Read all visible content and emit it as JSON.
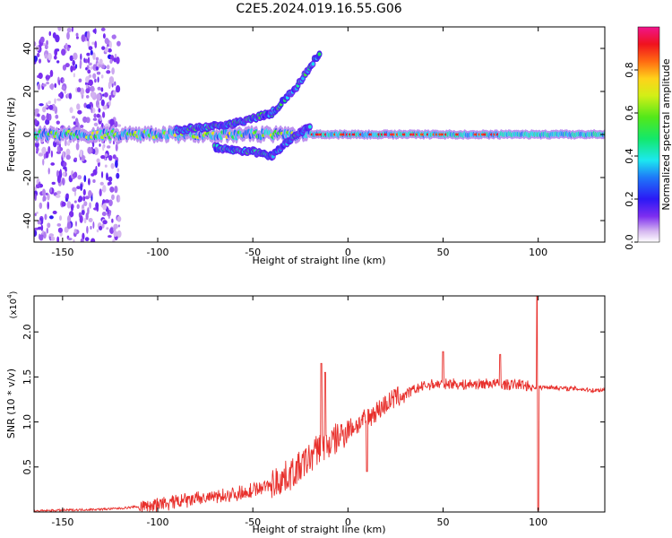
{
  "figure": {
    "title": "C2E5.2024.019.16.55.G06"
  },
  "chart_data": [
    {
      "type": "heatmap",
      "xlabel": "Height of straight line (km)",
      "ylabel": "Frequency (Hz)",
      "xlim": [
        -165,
        135
      ],
      "ylim": [
        -50,
        50
      ],
      "xticks": [
        -150,
        -100,
        -50,
        0,
        50,
        100
      ],
      "yticks": [
        -40,
        -20,
        0,
        20,
        40
      ],
      "colorbar": {
        "label": "Normalized spectral amplitude",
        "range": [
          0,
          1
        ],
        "ticks": [
          0.0,
          0.2,
          0.4,
          0.6,
          0.8
        ],
        "colormap": "rainbow (white, purple, blue, cyan, green, yellow, orange, red, magenta)"
      },
      "features": [
        {
          "name": "main carrier line",
          "x_range": [
            -165,
            135
          ],
          "frequency_hz": 0
        },
        {
          "name": "scattered noise band",
          "x_range": [
            -165,
            -120
          ],
          "frequency_hz_range": [
            -50,
            50
          ]
        },
        {
          "name": "upper branch",
          "points": [
            [
              -90,
              2
            ],
            [
              -60,
              5
            ],
            [
              -40,
              10
            ],
            [
              -27,
              22
            ],
            [
              -15,
              38
            ]
          ]
        },
        {
          "name": "lower branch",
          "points": [
            [
              -70,
              -6
            ],
            [
              -50,
              -8
            ],
            [
              -40,
              -10
            ],
            [
              -30,
              -2
            ],
            [
              -20,
              4
            ]
          ]
        }
      ]
    },
    {
      "type": "line",
      "xlabel": "Height of straight line (km)",
      "ylabel": "SNR (10 * v/v)",
      "y_multiplier": "(x10",
      "y_multiplier_exp": "4",
      "y_multiplier_close": ")",
      "xlim": [
        -165,
        135
      ],
      "ylim": [
        0,
        2.4
      ],
      "xticks": [
        -150,
        -100,
        -50,
        0,
        50,
        100
      ],
      "yticks": [
        0.5,
        1.0,
        1.5,
        2.0
      ],
      "series": [
        {
          "color": "#e8302c",
          "x": [
            -165,
            -150,
            -130,
            -120,
            -110,
            -100,
            -90,
            -80,
            -70,
            -60,
            -50,
            -40,
            -30,
            -25,
            -20,
            -15,
            -12,
            -10,
            -5,
            0,
            5,
            10,
            15,
            20,
            25,
            30,
            35,
            40,
            45,
            50,
            55,
            60,
            65,
            70,
            75,
            80,
            85,
            90,
            95,
            100,
            105,
            110,
            115,
            120,
            125,
            130,
            135
          ],
          "y": [
            0.01,
            0.02,
            0.03,
            0.04,
            0.06,
            0.08,
            0.11,
            0.14,
            0.17,
            0.2,
            0.24,
            0.31,
            0.42,
            0.5,
            0.6,
            0.72,
            0.74,
            0.75,
            0.83,
            0.92,
            0.97,
            1.04,
            1.12,
            1.2,
            1.27,
            1.3,
            1.36,
            1.4,
            1.42,
            1.42,
            1.43,
            1.41,
            1.42,
            1.42,
            1.43,
            1.42,
            1.41,
            1.42,
            1.4,
            1.38,
            1.39,
            1.38,
            1.37,
            1.37,
            1.36,
            1.35,
            1.36
          ]
        }
      ],
      "spikes": [
        {
          "x": -14,
          "y": 1.65
        },
        {
          "x": -12,
          "y": 1.55
        },
        {
          "x": 10,
          "y": 0.45
        },
        {
          "x": 50,
          "y": 1.78
        },
        {
          "x": 80,
          "y": 1.75
        },
        {
          "x": 99.5,
          "y": 2.4
        },
        {
          "x": 100,
          "y": 0.02
        }
      ]
    }
  ]
}
